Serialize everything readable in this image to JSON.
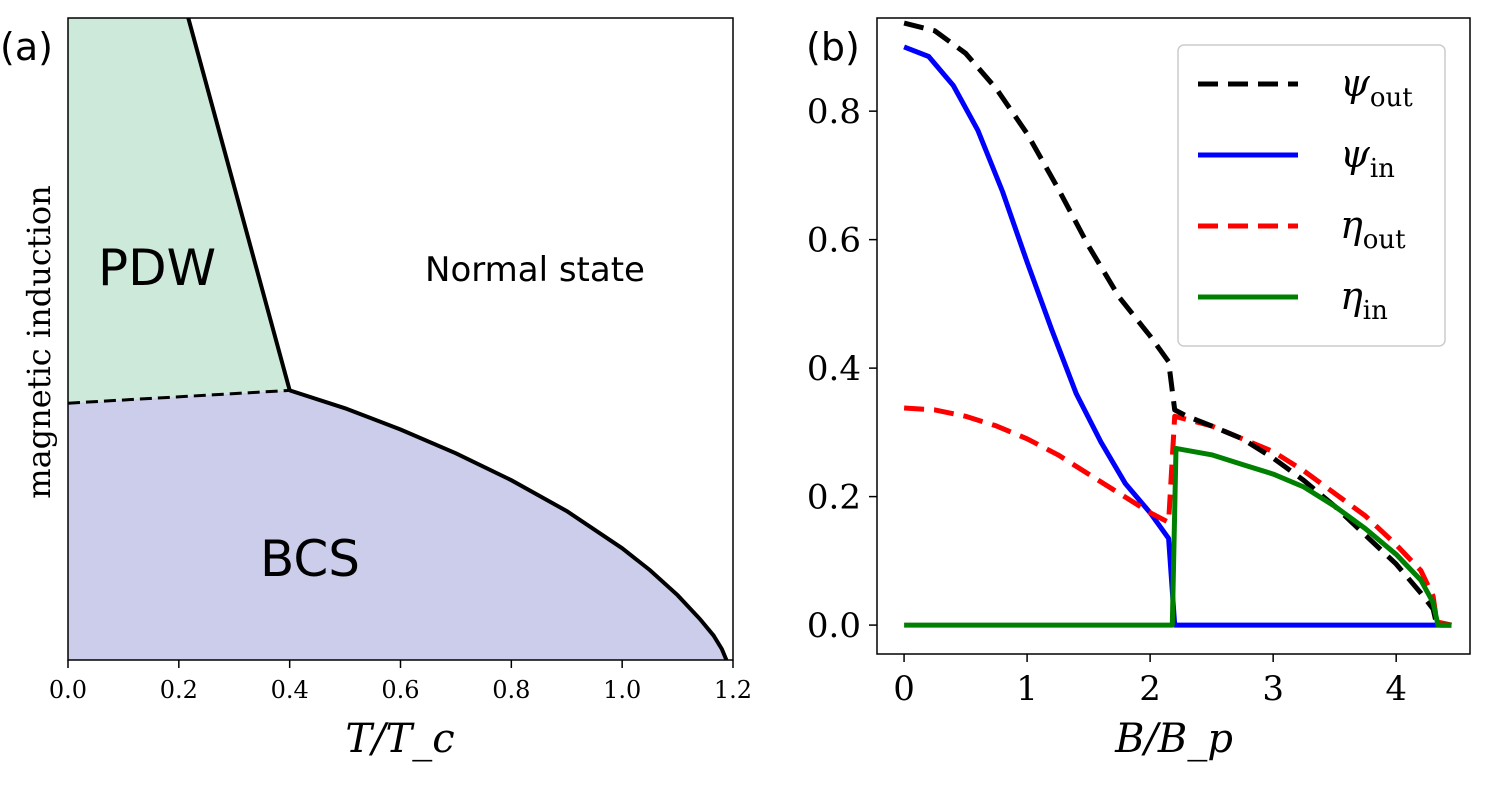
{
  "panel_a": {
    "label": "(a)",
    "xlabel": "T/T_c",
    "ylabel": "magnetic induction",
    "region_labels": {
      "pdw": "PDW",
      "normal": "Normal state",
      "bcs": "BCS"
    },
    "colors": {
      "pdw_fill": "#cde9da",
      "bcs_fill": "#cbcdeb",
      "line": "#000000"
    },
    "xticks": [
      "0.0",
      "0.2",
      "0.4",
      "0.6",
      "0.8",
      "1.0",
      "1.2"
    ]
  },
  "panel_b": {
    "label": "(b)",
    "xlabel": "B/B_p",
    "xticks": [
      "0",
      "1",
      "2",
      "3",
      "4"
    ],
    "yticks": [
      "0.0",
      "0.2",
      "0.4",
      "0.6",
      "0.8"
    ]
  },
  "chart_data": [
    {
      "type": "area",
      "xlabel": "T/T_c",
      "ylabel": "magnetic induction",
      "xlim": [
        0.0,
        1.2
      ],
      "ylim": [
        0.0,
        1.0
      ],
      "yticks_shown": false,
      "note_regions": [
        "PDW",
        "Normal state",
        "BCS"
      ],
      "boundaries": {
        "pdw_normal": {
          "x": [
            0.217,
            0.4
          ],
          "y": [
            1.0,
            0.42
          ]
        },
        "pdw_bcs": {
          "x": [
            0.0,
            0.4
          ],
          "y": [
            0.4,
            0.42
          ]
        },
        "bcs_normal": {
          "x": [
            0.4,
            0.5,
            0.6,
            0.7,
            0.8,
            0.9,
            1.0,
            1.05,
            1.1,
            1.14,
            1.165,
            1.18,
            1.188
          ],
          "y": [
            0.42,
            0.392,
            0.359,
            0.322,
            0.28,
            0.232,
            0.174,
            0.14,
            0.101,
            0.064,
            0.038,
            0.017,
            0.0
          ]
        }
      }
    },
    {
      "type": "line",
      "xlabel": "B/B_p",
      "xlim": [
        -0.22,
        4.6
      ],
      "ylim": [
        -0.045,
        0.945
      ],
      "legend": "top-right",
      "series": [
        {
          "name": "ψ_out",
          "color": "#000000",
          "dash": true,
          "x": [
            0,
            0.25,
            0.5,
            0.75,
            1.0,
            1.25,
            1.5,
            1.75,
            2.0,
            2.15,
            2.2,
            2.3,
            2.5,
            2.75,
            3.0,
            3.25,
            3.5,
            3.75,
            4.0,
            4.2,
            4.3,
            4.33,
            4.45
          ],
          "y": [
            0.937,
            0.925,
            0.89,
            0.835,
            0.765,
            0.68,
            0.59,
            0.51,
            0.45,
            0.41,
            0.335,
            0.325,
            0.31,
            0.29,
            0.26,
            0.225,
            0.185,
            0.14,
            0.095,
            0.05,
            0.025,
            0.0,
            0.0
          ]
        },
        {
          "name": "ψ_in",
          "color": "#0000ff",
          "dash": false,
          "x": [
            0,
            0.2,
            0.4,
            0.6,
            0.8,
            1.0,
            1.2,
            1.4,
            1.6,
            1.8,
            2.0,
            2.15,
            2.2,
            3.0,
            4.45
          ],
          "y": [
            0.9,
            0.885,
            0.84,
            0.77,
            0.675,
            0.565,
            0.46,
            0.36,
            0.285,
            0.22,
            0.175,
            0.135,
            0.0,
            0.0,
            0.0
          ]
        },
        {
          "name": "η_out",
          "color": "#ff0000",
          "dash": true,
          "x": [
            0,
            0.25,
            0.5,
            0.75,
            1.0,
            1.25,
            1.5,
            1.75,
            2.0,
            2.15,
            2.2,
            2.3,
            2.5,
            2.75,
            3.0,
            3.25,
            3.5,
            3.75,
            4.0,
            4.2,
            4.3,
            4.33,
            4.45
          ],
          "y": [
            0.338,
            0.335,
            0.325,
            0.31,
            0.29,
            0.265,
            0.235,
            0.205,
            0.175,
            0.16,
            0.325,
            0.32,
            0.31,
            0.29,
            0.27,
            0.24,
            0.205,
            0.17,
            0.125,
            0.085,
            0.045,
            0.005,
            0.0
          ]
        },
        {
          "name": "η_in",
          "color": "#008000",
          "dash": false,
          "x": [
            0,
            1.0,
            2.18,
            2.21,
            2.5,
            2.75,
            3.0,
            3.25,
            3.5,
            3.75,
            4.0,
            4.2,
            4.3,
            4.34,
            4.45
          ],
          "y": [
            0.0,
            0.0,
            0.0,
            0.275,
            0.265,
            0.25,
            0.235,
            0.215,
            0.185,
            0.15,
            0.11,
            0.07,
            0.035,
            0.0,
            0.0
          ]
        }
      ]
    }
  ]
}
